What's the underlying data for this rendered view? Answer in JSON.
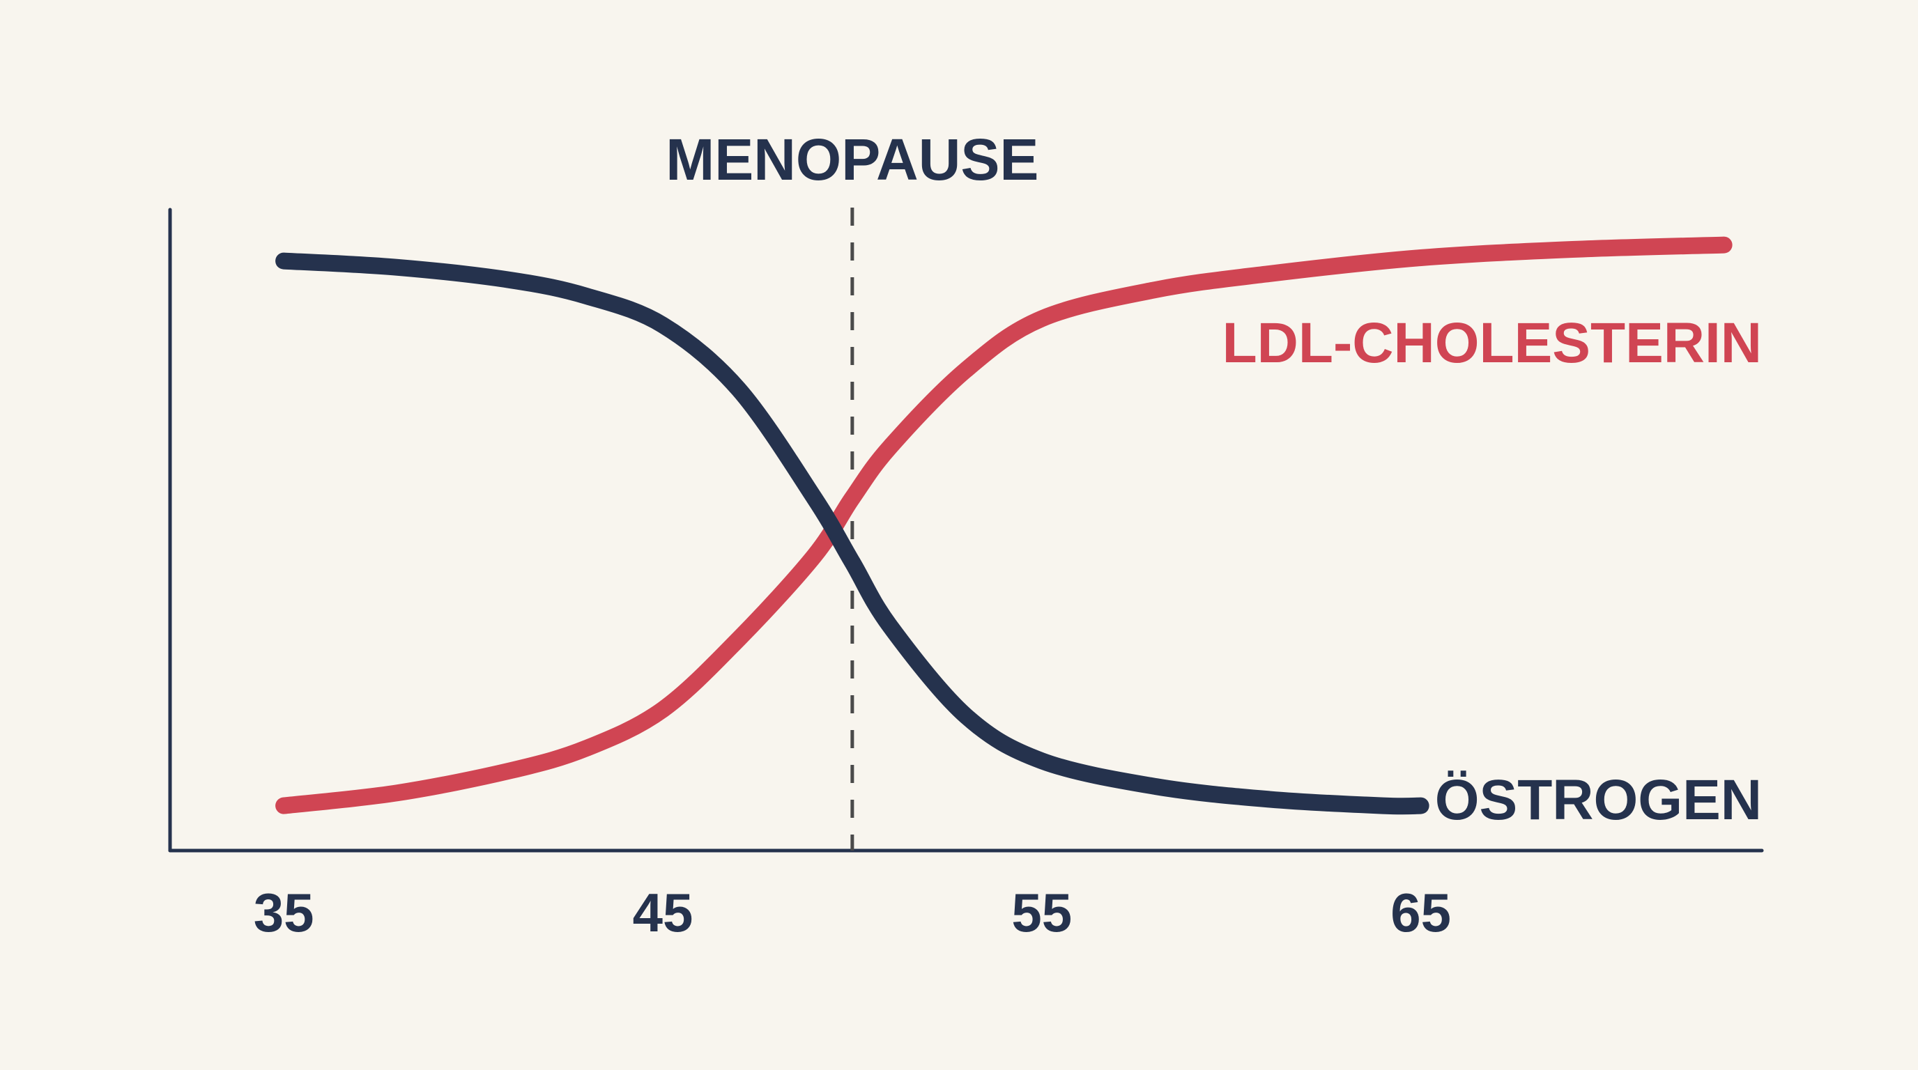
{
  "colors": {
    "background": "#f8f5ee",
    "axis": "#25324d",
    "estrogen": "#25324d",
    "ldl": "#d04553",
    "menopause_line": "#4a4a4a"
  },
  "chart_data": {
    "type": "line",
    "grid": false,
    "legend": "none",
    "x_ticks": [
      35,
      45,
      55,
      65
    ],
    "x_tick_labels": [
      "35",
      "45",
      "55",
      "65"
    ],
    "xlim": [
      32,
      74
    ],
    "ylim": [
      0,
      100
    ],
    "annotation": {
      "label": "MENOPAUSE",
      "x": 50,
      "style": "dashed-vertical"
    },
    "series": [
      {
        "name": "ÖSTROGEN",
        "color": "#25324d",
        "x": [
          35,
          38,
          41,
          43,
          45,
          47,
          49,
          50,
          51,
          53,
          55,
          58,
          61,
          64,
          65
        ],
        "y": [
          92,
          91,
          89,
          86.5,
          82,
          72,
          55,
          45,
          35,
          21,
          14,
          10,
          8,
          7,
          7
        ]
      },
      {
        "name": "LDL-CHOLESTERIN",
        "color": "#d04553",
        "x": [
          35,
          38,
          41,
          43,
          45,
          47,
          49,
          50,
          51,
          53,
          55,
          58,
          61,
          65,
          69,
          73
        ],
        "y": [
          7,
          9,
          12.5,
          16,
          22,
          33,
          46,
          55,
          63,
          75,
          83,
          87.5,
          90,
          92.5,
          93.8,
          94.5
        ]
      }
    ]
  }
}
